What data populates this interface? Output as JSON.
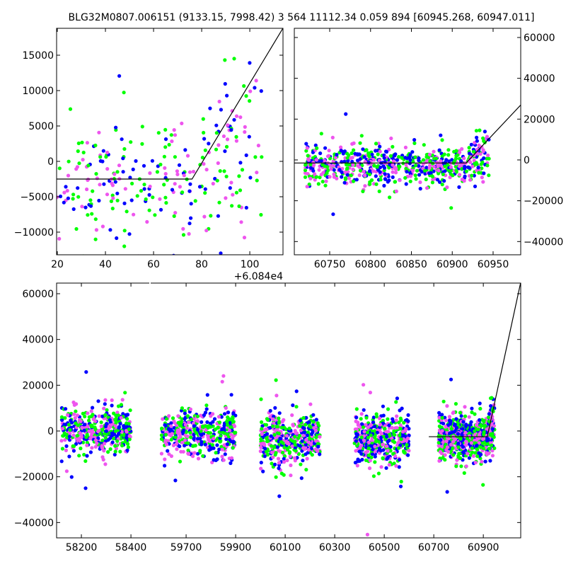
{
  "chart_data": {
    "type": "scatter",
    "title": "BLG32M0807.006151 (9133.15, 7998.42)   3 564 11112.34 0.059 894 [60945.268, 60947.011]",
    "colors": {
      "green": "#00ff00",
      "blue": "#0000ff",
      "magenta": "#ee55ee",
      "fit": "#000000"
    },
    "series_names": [
      "green",
      "blue",
      "magenta"
    ],
    "panels": [
      {
        "name": "zoom-peak",
        "xlim": [
          60859.7,
          60953.8
        ],
        "ylim": [
          -13200,
          18800
        ],
        "x_offset_label": "+6.084e4",
        "x_offset": 60840,
        "xticks": [
          20,
          40,
          60,
          80,
          100
        ],
        "yticks": [
          -10000,
          -5000,
          0,
          5000,
          10000,
          15000
        ],
        "y_axis_side": "left",
        "fit": [
          [
            60840,
            -2500
          ],
          [
            60916,
            -2500
          ],
          [
            60955,
            19500
          ]
        ]
      },
      {
        "name": "last-season",
        "xlim": [
          60706.7,
          60983.8
        ],
        "ylim": [
          -46480,
          64500
        ],
        "xticks": [
          60750,
          60800,
          60850,
          60900,
          60950
        ],
        "yticks": [
          -40000,
          -20000,
          0,
          20000,
          40000,
          60000
        ],
        "y_axis_side": "right",
        "fit": [
          [
            60706,
            -1500
          ],
          [
            60917,
            -1500
          ],
          [
            60984,
            27000
          ]
        ]
      },
      {
        "name": "full-lightcurve",
        "broken_x": [
          [
            58100,
            58474
          ],
          [
            59557,
            61051
          ]
        ],
        "ylim": [
          -46700,
          64640
        ],
        "xticks": [
          58200,
          58400,
          59700,
          59900,
          60100,
          60300,
          60500,
          60700,
          60900
        ],
        "yticks": [
          -40000,
          -20000,
          0,
          20000,
          40000,
          60000
        ],
        "y_axis_side": "left",
        "fit": [
          [
            60680,
            -2500
          ],
          [
            60916,
            -2500
          ],
          [
            61051,
            65000
          ]
        ]
      }
    ],
    "seasons": [
      {
        "x": [
          58120,
          58400
        ],
        "y_center": 500,
        "y_spread": 4500
      },
      {
        "x": [
          59600,
          59900
        ],
        "y_center": -1500,
        "y_spread": 5000
      },
      {
        "x": [
          60000,
          60240
        ],
        "y_center": -3500,
        "y_spread": 5000
      },
      {
        "x": [
          60380,
          60600
        ],
        "y_center": -3000,
        "y_spread": 5000
      },
      {
        "x": [
          60720,
          60945
        ],
        "y_center": -3000,
        "y_spread": 4500
      }
    ]
  }
}
